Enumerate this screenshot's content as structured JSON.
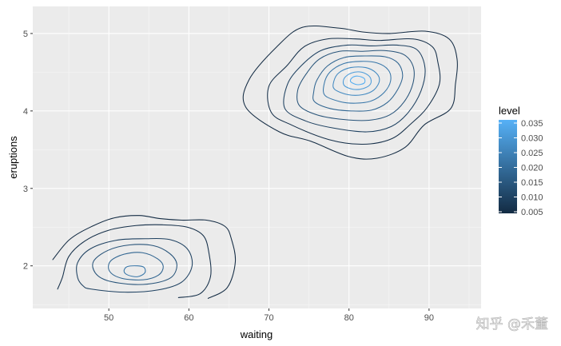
{
  "chart_data": {
    "type": "contour",
    "title": "",
    "xlabel": "waiting",
    "ylabel": "eruptions",
    "xlim": [
      40.5,
      96.5
    ],
    "ylim": [
      1.45,
      5.35
    ],
    "x_ticks": [
      50,
      60,
      70,
      80,
      90
    ],
    "y_ticks": [
      2,
      3,
      4,
      5
    ],
    "x_tick_labels": [
      "50",
      "60",
      "70",
      "80",
      "90"
    ],
    "y_tick_labels": [
      "2",
      "3",
      "4",
      "5"
    ],
    "grid": true,
    "background": "#ebebeb",
    "legend": {
      "title": "level",
      "position": "right",
      "labels": [
        "0.035",
        "0.030",
        "0.025",
        "0.020",
        "0.015",
        "0.010",
        "0.005"
      ],
      "values": [
        0.035,
        0.03,
        0.025,
        0.02,
        0.015,
        0.01,
        0.005
      ],
      "color_low": "#132b43",
      "color_high": "#56b1f7"
    },
    "series": [
      {
        "cluster": "upper",
        "contours": [
          {
            "level": 0.002,
            "points": [
              [
                71.3,
                3.73
              ],
              [
                75.2,
                3.61
              ],
              [
                80.0,
                3.41
              ],
              [
                83.5,
                3.39
              ],
              [
                87.0,
                3.53
              ],
              [
                89.4,
                3.82
              ],
              [
                92.7,
                4.03
              ],
              [
                93.3,
                4.35
              ],
              [
                93.5,
                4.67
              ],
              [
                92.5,
                4.93
              ],
              [
                89.5,
                5.03
              ],
              [
                85.1,
                5.0
              ],
              [
                81.7,
                5.02
              ],
              [
                78.7,
                5.07
              ],
              [
                74.2,
                5.08
              ],
              [
                71.0,
                4.83
              ],
              [
                67.5,
                4.4
              ],
              [
                67.1,
                4.05
              ]
            ]
          },
          {
            "level": 0.006,
            "points": [
              [
                70.3,
                3.98
              ],
              [
                72.8,
                3.82
              ],
              [
                77.5,
                3.63
              ],
              [
                81.7,
                3.57
              ],
              [
                85.3,
                3.64
              ],
              [
                87.8,
                3.84
              ],
              [
                89.8,
                4.05
              ],
              [
                91.3,
                4.35
              ],
              [
                91.1,
                4.63
              ],
              [
                90.4,
                4.83
              ],
              [
                88.0,
                4.93
              ],
              [
                83.8,
                4.91
              ],
              [
                80.8,
                4.93
              ],
              [
                77.3,
                4.93
              ],
              [
                74.4,
                4.83
              ],
              [
                72.3,
                4.59
              ],
              [
                70.0,
                4.32
              ]
            ]
          },
          {
            "level": 0.01,
            "points": [
              [
                72.0,
                4.03
              ],
              [
                74.6,
                3.87
              ],
              [
                78.0,
                3.78
              ],
              [
                82.2,
                3.73
              ],
              [
                85.3,
                3.8
              ],
              [
                87.4,
                3.98
              ],
              [
                89.0,
                4.26
              ],
              [
                89.5,
                4.55
              ],
              [
                88.5,
                4.79
              ],
              [
                86.0,
                4.85
              ],
              [
                82.8,
                4.84
              ],
              [
                79.8,
                4.85
              ],
              [
                76.5,
                4.78
              ],
              [
                74.0,
                4.58
              ],
              [
                72.3,
                4.34
              ]
            ]
          },
          {
            "level": 0.014,
            "points": [
              [
                73.8,
                4.07
              ],
              [
                76.0,
                3.95
              ],
              [
                79.3,
                3.89
              ],
              [
                82.5,
                3.88
              ],
              [
                85.1,
                3.95
              ],
              [
                86.9,
                4.12
              ],
              [
                88.0,
                4.36
              ],
              [
                88.0,
                4.58
              ],
              [
                86.8,
                4.73
              ],
              [
                84.4,
                4.78
              ],
              [
                81.7,
                4.77
              ],
              [
                78.8,
                4.77
              ],
              [
                76.3,
                4.67
              ],
              [
                74.6,
                4.47
              ],
              [
                73.6,
                4.27
              ]
            ]
          },
          {
            "level": 0.018,
            "points": [
              [
                75.7,
                4.12
              ],
              [
                77.7,
                4.03
              ],
              [
                80.3,
                4.0
              ],
              [
                82.8,
                4.01
              ],
              [
                84.8,
                4.11
              ],
              [
                86.1,
                4.28
              ],
              [
                86.7,
                4.46
              ],
              [
                86.1,
                4.62
              ],
              [
                84.5,
                4.7
              ],
              [
                82.0,
                4.71
              ],
              [
                79.4,
                4.69
              ],
              [
                77.3,
                4.58
              ],
              [
                76.0,
                4.4
              ],
              [
                75.6,
                4.25
              ]
            ]
          },
          {
            "level": 0.022,
            "points": [
              [
                77.0,
                4.2
              ],
              [
                78.9,
                4.12
              ],
              [
                80.8,
                4.1
              ],
              [
                82.8,
                4.13
              ],
              [
                84.4,
                4.24
              ],
              [
                85.2,
                4.39
              ],
              [
                84.9,
                4.53
              ],
              [
                83.5,
                4.62
              ],
              [
                81.5,
                4.64
              ],
              [
                79.3,
                4.61
              ],
              [
                77.6,
                4.5
              ],
              [
                76.9,
                4.35
              ]
            ]
          },
          {
            "level": 0.026,
            "points": [
              [
                78.2,
                4.28
              ],
              [
                79.9,
                4.21
              ],
              [
                81.7,
                4.21
              ],
              [
                83.1,
                4.27
              ],
              [
                83.8,
                4.39
              ],
              [
                83.4,
                4.49
              ],
              [
                82.1,
                4.56
              ],
              [
                80.2,
                4.56
              ],
              [
                78.7,
                4.49
              ],
              [
                78.1,
                4.38
              ]
            ]
          },
          {
            "level": 0.03,
            "points": [
              [
                79.4,
                4.33
              ],
              [
                80.5,
                4.28
              ],
              [
                81.8,
                4.29
              ],
              [
                82.7,
                4.35
              ],
              [
                82.6,
                4.44
              ],
              [
                81.6,
                4.5
              ],
              [
                80.3,
                4.49
              ],
              [
                79.4,
                4.42
              ]
            ]
          },
          {
            "level": 0.034,
            "points": [
              [
                80.2,
                4.38
              ],
              [
                81.0,
                4.34
              ],
              [
                81.9,
                4.36
              ],
              [
                81.9,
                4.42
              ],
              [
                81.1,
                4.45
              ],
              [
                80.4,
                4.43
              ]
            ]
          }
        ]
      },
      {
        "cluster": "lower",
        "contours": [
          {
            "level": 0.002,
            "points": [
              [
                62.4,
                1.58
              ],
              [
                64.8,
                1.72
              ],
              [
                65.8,
                2.05
              ],
              [
                65.3,
                2.35
              ],
              [
                64.5,
                2.51
              ],
              [
                62.2,
                2.59
              ],
              [
                59.1,
                2.59
              ],
              [
                56.4,
                2.61
              ],
              [
                53.8,
                2.65
              ],
              [
                50.7,
                2.62
              ],
              [
                47.9,
                2.51
              ],
              [
                45.1,
                2.34
              ],
              [
                43.0,
                2.08
              ]
            ]
          },
          {
            "level": 0.006,
            "points": [
              [
                58.7,
                1.59
              ],
              [
                61.4,
                1.64
              ],
              [
                62.7,
                1.86
              ],
              [
                62.5,
                2.17
              ],
              [
                61.8,
                2.39
              ],
              [
                59.8,
                2.5
              ],
              [
                56.7,
                2.53
              ],
              [
                53.4,
                2.52
              ],
              [
                50.0,
                2.46
              ],
              [
                47.0,
                2.32
              ],
              [
                45.0,
                2.12
              ],
              [
                44.2,
                1.85
              ],
              [
                43.6,
                1.7
              ]
            ]
          },
          {
            "level": 0.01,
            "points": [
              [
                47.8,
                1.7
              ],
              [
                52.0,
                1.66
              ],
              [
                56.2,
                1.69
              ],
              [
                59.1,
                1.79
              ],
              [
                60.4,
                2.0
              ],
              [
                59.8,
                2.22
              ],
              [
                57.6,
                2.34
              ],
              [
                54.5,
                2.35
              ],
              [
                50.9,
                2.33
              ],
              [
                47.7,
                2.22
              ],
              [
                46.1,
                2.04
              ],
              [
                46.1,
                1.85
              ],
              [
                46.8,
                1.74
              ]
            ]
          },
          {
            "level": 0.014,
            "points": [
              [
                49.8,
                1.81
              ],
              [
                53.0,
                1.76
              ],
              [
                55.9,
                1.78
              ],
              [
                57.9,
                1.86
              ],
              [
                58.5,
                2.02
              ],
              [
                57.6,
                2.16
              ],
              [
                55.6,
                2.26
              ],
              [
                52.6,
                2.27
              ],
              [
                49.9,
                2.2
              ],
              [
                48.1,
                2.06
              ],
              [
                48.3,
                1.91
              ]
            ]
          },
          {
            "level": 0.018,
            "points": [
              [
                51.6,
                1.84
              ],
              [
                54.3,
                1.82
              ],
              [
                56.2,
                1.88
              ],
              [
                56.8,
                1.99
              ],
              [
                56.1,
                2.09
              ],
              [
                54.2,
                2.17
              ],
              [
                51.9,
                2.15
              ],
              [
                50.2,
                2.06
              ],
              [
                50.1,
                1.93
              ]
            ]
          },
          {
            "level": 0.022,
            "points": [
              [
                52.4,
                1.88
              ],
              [
                53.6,
                1.86
              ],
              [
                54.5,
                1.91
              ],
              [
                54.4,
                1.98
              ],
              [
                53.6,
                2.0
              ],
              [
                52.3,
                1.99
              ],
              [
                51.9,
                1.93
              ]
            ]
          }
        ]
      }
    ]
  },
  "watermark": "知乎 @禾董"
}
